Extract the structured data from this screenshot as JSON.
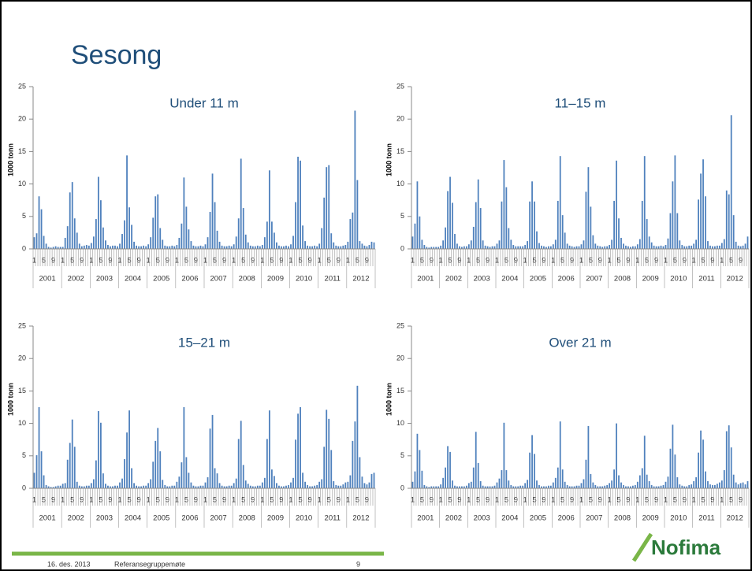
{
  "title": "Sesong",
  "chart_data": [
    {
      "type": "bar",
      "title": "Under 11 m",
      "y_label": "1000 tonn",
      "color": "#4f81bd",
      "ylim": [
        0,
        25
      ],
      "yticks": [
        0,
        5,
        10,
        15,
        20,
        25
      ],
      "grid": false,
      "groups": [
        "2001",
        "2002",
        "2003",
        "2004",
        "2005",
        "2006",
        "2007",
        "2008",
        "2009",
        "2010",
        "2011",
        "2012"
      ],
      "categories": [
        "1",
        null,
        null,
        null,
        "5",
        null,
        null,
        null,
        "9",
        null,
        null,
        null,
        "1",
        null,
        null,
        null,
        "5",
        null,
        null,
        null,
        "9",
        null,
        null,
        null,
        "1",
        null,
        null,
        null,
        "5",
        null,
        null,
        null,
        "9",
        null,
        null,
        null,
        "1",
        null,
        null,
        null,
        "5",
        null,
        null,
        null,
        "9",
        null,
        null,
        null,
        "1",
        null,
        null,
        null,
        "5",
        null,
        null,
        null,
        "9",
        null,
        null,
        null,
        "1",
        null,
        null,
        null,
        "5",
        null,
        null,
        null,
        "9",
        null,
        null,
        null,
        "1",
        null,
        null,
        null,
        "5",
        null,
        null,
        null,
        "9",
        null,
        null,
        null,
        "1",
        null,
        null,
        null,
        "5",
        null,
        null,
        null,
        "9",
        null,
        null,
        null,
        "1",
        null,
        null,
        null,
        "5",
        null,
        null,
        null,
        "9",
        null,
        null,
        null,
        "1",
        null,
        null,
        null,
        "5",
        null,
        null,
        null,
        "9",
        null,
        null,
        null,
        "1",
        null,
        null,
        null,
        "5",
        null,
        null,
        null,
        "9",
        null,
        null,
        null,
        "1",
        null,
        null,
        null,
        "5",
        null,
        null,
        null,
        "9",
        null,
        null,
        null
      ],
      "values": [
        1.8,
        2.4,
        8.1,
        6.1,
        2.0,
        0.8,
        0.3,
        0.2,
        0.3,
        0.4,
        0.3,
        0.3,
        0.3,
        1.7,
        3.5,
        8.7,
        10.3,
        4.7,
        2.5,
        0.8,
        0.4,
        0.5,
        0.6,
        0.5,
        0.9,
        1.9,
        4.6,
        11.1,
        7.5,
        3.3,
        1.3,
        0.6,
        0.4,
        0.5,
        0.5,
        0.4,
        0.8,
        2.3,
        4.4,
        14.4,
        6.4,
        3.7,
        1.1,
        0.5,
        0.4,
        0.4,
        0.5,
        0.4,
        0.7,
        1.8,
        4.8,
        8.1,
        8.4,
        3.2,
        1.4,
        0.5,
        0.4,
        0.4,
        0.5,
        0.4,
        0.6,
        1.7,
        3.9,
        11.0,
        6.5,
        3.0,
        1.2,
        0.5,
        0.4,
        0.4,
        0.5,
        0.4,
        0.7,
        1.8,
        5.7,
        11.6,
        7.2,
        2.8,
        1.1,
        0.5,
        0.4,
        0.4,
        0.5,
        0.4,
        0.7,
        1.9,
        4.7,
        13.9,
        6.3,
        2.2,
        1.0,
        0.5,
        0.4,
        0.4,
        0.5,
        0.4,
        0.6,
        1.8,
        4.2,
        12.1,
        4.2,
        2.5,
        1.0,
        0.5,
        0.4,
        0.4,
        0.5,
        0.4,
        0.7,
        2.0,
        7.2,
        14.2,
        13.6,
        3.6,
        1.2,
        0.5,
        0.4,
        0.4,
        0.5,
        0.4,
        0.8,
        3.2,
        7.9,
        12.6,
        12.9,
        2.4,
        1.0,
        0.5,
        0.4,
        0.4,
        0.5,
        0.6,
        1.1,
        4.6,
        5.6,
        21.3,
        10.6,
        1.2,
        0.8,
        0.5,
        0.4,
        0.6,
        1.1,
        1.0
      ]
    },
    {
      "type": "bar",
      "title": "11–15 m",
      "y_label": "1000 tonn",
      "color": "#4f81bd",
      "ylim": [
        0,
        25
      ],
      "yticks": [
        0,
        5,
        10,
        15,
        20,
        25
      ],
      "grid": false,
      "groups": [
        "2001",
        "2002",
        "2003",
        "2004",
        "2005",
        "2006",
        "2007",
        "2008",
        "2009",
        "2010",
        "2011",
        "2012"
      ],
      "categories": [
        "1",
        null,
        null,
        null,
        "5",
        null,
        null,
        null,
        "9",
        null,
        null,
        null,
        "1",
        null,
        null,
        null,
        "5",
        null,
        null,
        null,
        "9",
        null,
        null,
        null,
        "1",
        null,
        null,
        null,
        "5",
        null,
        null,
        null,
        "9",
        null,
        null,
        null,
        "1",
        null,
        null,
        null,
        "5",
        null,
        null,
        null,
        "9",
        null,
        null,
        null,
        "1",
        null,
        null,
        null,
        "5",
        null,
        null,
        null,
        "9",
        null,
        null,
        null,
        "1",
        null,
        null,
        null,
        "5",
        null,
        null,
        null,
        "9",
        null,
        null,
        null,
        "1",
        null,
        null,
        null,
        "5",
        null,
        null,
        null,
        "9",
        null,
        null,
        null,
        "1",
        null,
        null,
        null,
        "5",
        null,
        null,
        null,
        "9",
        null,
        null,
        null,
        "1",
        null,
        null,
        null,
        "5",
        null,
        null,
        null,
        "9",
        null,
        null,
        null,
        "1",
        null,
        null,
        null,
        "5",
        null,
        null,
        null,
        "9",
        null,
        null,
        null,
        "1",
        null,
        null,
        null,
        "5",
        null,
        null,
        null,
        "9",
        null,
        null,
        null,
        "1",
        null,
        null,
        null,
        "5",
        null,
        null,
        null,
        "9",
        null,
        null,
        null
      ],
      "values": [
        1.9,
        3.9,
        10.4,
        5.0,
        1.4,
        0.6,
        0.3,
        0.2,
        0.3,
        0.3,
        0.3,
        0.3,
        0.5,
        1.3,
        3.3,
        8.9,
        11.1,
        7.1,
        2.3,
        0.8,
        0.4,
        0.3,
        0.4,
        0.4,
        0.7,
        1.3,
        3.4,
        7.2,
        10.7,
        6.3,
        1.3,
        0.5,
        0.4,
        0.3,
        0.4,
        0.4,
        0.8,
        1.3,
        7.3,
        13.7,
        9.5,
        3.2,
        1.4,
        0.6,
        0.4,
        0.4,
        0.4,
        0.4,
        0.6,
        1.2,
        7.3,
        10.4,
        7.3,
        2.7,
        0.9,
        0.5,
        0.4,
        0.3,
        0.4,
        0.4,
        0.7,
        1.4,
        7.4,
        14.3,
        5.2,
        2.5,
        0.8,
        0.5,
        0.4,
        0.3,
        0.4,
        0.4,
        0.7,
        1.3,
        8.8,
        12.6,
        6.5,
        2.1,
        0.8,
        0.5,
        0.4,
        0.3,
        0.4,
        0.4,
        0.6,
        1.4,
        7.4,
        13.6,
        4.7,
        1.7,
        0.8,
        0.5,
        0.4,
        0.3,
        0.4,
        0.4,
        0.7,
        1.5,
        7.4,
        14.3,
        4.6,
        1.9,
        1.0,
        0.5,
        0.4,
        0.4,
        0.5,
        0.4,
        0.6,
        1.6,
        5.5,
        10.4,
        14.4,
        5.5,
        1.3,
        0.6,
        0.4,
        0.4,
        0.5,
        0.5,
        0.8,
        1.4,
        7.6,
        11.6,
        13.8,
        8.1,
        1.2,
        0.5,
        0.4,
        0.4,
        0.5,
        0.5,
        0.9,
        1.5,
        9.0,
        8.4,
        20.6,
        5.2,
        1.1,
        0.5,
        0.4,
        0.5,
        0.8,
        1.9
      ]
    },
    {
      "type": "bar",
      "title": "15–21 m",
      "y_label": "1000 tonn",
      "color": "#4f81bd",
      "ylim": [
        0,
        25
      ],
      "yticks": [
        0,
        5,
        10,
        15,
        20,
        25
      ],
      "grid": false,
      "groups": [
        "2001",
        "2002",
        "2003",
        "2004",
        "2005",
        "2006",
        "2007",
        "2008",
        "2009",
        "2010",
        "2011",
        "2012"
      ],
      "categories": [
        "1",
        null,
        null,
        null,
        "5",
        null,
        null,
        null,
        "9",
        null,
        null,
        null,
        "1",
        null,
        null,
        null,
        "5",
        null,
        null,
        null,
        "9",
        null,
        null,
        null,
        "1",
        null,
        null,
        null,
        "5",
        null,
        null,
        null,
        "9",
        null,
        null,
        null,
        "1",
        null,
        null,
        null,
        "5",
        null,
        null,
        null,
        "9",
        null,
        null,
        null,
        "1",
        null,
        null,
        null,
        "5",
        null,
        null,
        null,
        "9",
        null,
        null,
        null,
        "1",
        null,
        null,
        null,
        "5",
        null,
        null,
        null,
        "9",
        null,
        null,
        null,
        "1",
        null,
        null,
        null,
        "5",
        null,
        null,
        null,
        "9",
        null,
        null,
        null,
        "1",
        null,
        null,
        null,
        "5",
        null,
        null,
        null,
        "9",
        null,
        null,
        null,
        "1",
        null,
        null,
        null,
        "5",
        null,
        null,
        null,
        "9",
        null,
        null,
        null,
        "1",
        null,
        null,
        null,
        "5",
        null,
        null,
        null,
        "9",
        null,
        null,
        null,
        "1",
        null,
        null,
        null,
        "5",
        null,
        null,
        null,
        "9",
        null,
        null,
        null,
        "1",
        null,
        null,
        null,
        "5",
        null,
        null,
        null,
        "9",
        null,
        null,
        null
      ],
      "values": [
        2.4,
        5.1,
        12.5,
        5.7,
        2.0,
        0.5,
        0.3,
        0.2,
        0.2,
        0.3,
        0.4,
        0.4,
        0.7,
        0.8,
        4.4,
        7.0,
        10.6,
        6.4,
        1.0,
        0.4,
        0.3,
        0.3,
        0.4,
        0.4,
        0.8,
        1.4,
        4.3,
        11.9,
        10.1,
        2.3,
        0.7,
        0.4,
        0.3,
        0.3,
        0.4,
        0.4,
        0.9,
        1.5,
        4.5,
        8.6,
        12.0,
        3.1,
        0.8,
        0.4,
        0.3,
        0.3,
        0.4,
        0.4,
        0.8,
        1.4,
        4.1,
        7.3,
        9.3,
        5.7,
        1.3,
        0.5,
        0.3,
        0.3,
        0.4,
        0.4,
        1.0,
        1.8,
        4.0,
        12.5,
        4.8,
        2.4,
        0.9,
        0.4,
        0.3,
        0.3,
        0.4,
        0.4,
        0.9,
        1.7,
        9.2,
        11.3,
        3.1,
        2.3,
        0.8,
        0.4,
        0.3,
        0.3,
        0.4,
        0.4,
        0.8,
        1.5,
        7.6,
        10.4,
        3.6,
        1.2,
        0.7,
        0.4,
        0.3,
        0.3,
        0.4,
        0.4,
        0.9,
        1.6,
        7.6,
        12.0,
        2.9,
        1.9,
        0.8,
        0.4,
        0.3,
        0.3,
        0.4,
        0.5,
        0.9,
        1.6,
        7.5,
        11.5,
        12.5,
        2.4,
        1.0,
        0.5,
        0.3,
        0.3,
        0.4,
        0.5,
        1.0,
        1.4,
        6.4,
        12.1,
        10.7,
        5.9,
        1.1,
        0.5,
        0.4,
        0.4,
        0.6,
        0.9,
        1.0,
        2.0,
        7.3,
        10.3,
        15.8,
        4.8,
        1.8,
        0.8,
        0.6,
        0.9,
        2.2,
        2.4
      ]
    },
    {
      "type": "bar",
      "title": "Over 21 m",
      "y_label": "1000 tonn",
      "color": "#4f81bd",
      "ylim": [
        0,
        25
      ],
      "yticks": [
        0,
        5,
        10,
        15,
        20,
        25
      ],
      "grid": false,
      "groups": [
        "2001",
        "2002",
        "2003",
        "2004",
        "2005",
        "2006",
        "2007",
        "2008",
        "2009",
        "2010",
        "2011",
        "2012"
      ],
      "categories": [
        "1",
        null,
        null,
        null,
        "5",
        null,
        null,
        null,
        "9",
        null,
        null,
        null,
        "1",
        null,
        null,
        null,
        "5",
        null,
        null,
        null,
        "9",
        null,
        null,
        null,
        "1",
        null,
        null,
        null,
        "5",
        null,
        null,
        null,
        "9",
        null,
        null,
        null,
        "1",
        null,
        null,
        null,
        "5",
        null,
        null,
        null,
        "9",
        null,
        null,
        null,
        "1",
        null,
        null,
        null,
        "5",
        null,
        null,
        null,
        "9",
        null,
        null,
        null,
        "1",
        null,
        null,
        null,
        "5",
        null,
        null,
        null,
        "9",
        null,
        null,
        null,
        "1",
        null,
        null,
        null,
        "5",
        null,
        null,
        null,
        "9",
        null,
        null,
        null,
        "1",
        null,
        null,
        null,
        "5",
        null,
        null,
        null,
        "9",
        null,
        null,
        null,
        "1",
        null,
        null,
        null,
        "5",
        null,
        null,
        null,
        "9",
        null,
        null,
        null,
        "1",
        null,
        null,
        null,
        "5",
        null,
        null,
        null,
        "9",
        null,
        null,
        null,
        "1",
        null,
        null,
        null,
        "5",
        null,
        null,
        null,
        "9",
        null,
        null,
        null,
        "1",
        null,
        null,
        null,
        "5",
        null,
        null,
        null,
        "9",
        null,
        null,
        null
      ],
      "values": [
        1.0,
        2.6,
        8.4,
        5.9,
        2.7,
        0.5,
        0.3,
        0.2,
        0.3,
        0.3,
        0.3,
        0.3,
        0.6,
        1.6,
        3.2,
        6.5,
        5.6,
        1.2,
        0.4,
        0.3,
        0.3,
        0.3,
        0.3,
        0.4,
        0.8,
        1.0,
        3.2,
        8.7,
        3.9,
        1.1,
        0.4,
        0.3,
        0.3,
        0.3,
        0.3,
        0.4,
        0.9,
        1.5,
        2.8,
        10.1,
        2.8,
        1.2,
        0.5,
        0.3,
        0.3,
        0.3,
        0.4,
        0.4,
        0.8,
        1.3,
        5.5,
        8.2,
        5.3,
        1.2,
        0.5,
        0.3,
        0.3,
        0.3,
        0.4,
        0.4,
        0.9,
        1.6,
        3.2,
        10.3,
        2.9,
        1.0,
        0.5,
        0.3,
        0.3,
        0.3,
        0.4,
        0.4,
        0.8,
        1.4,
        4.4,
        9.6,
        2.2,
        0.9,
        0.5,
        0.3,
        0.3,
        0.3,
        0.4,
        0.5,
        0.8,
        1.2,
        2.9,
        10.0,
        2.0,
        0.9,
        0.5,
        0.3,
        0.3,
        0.3,
        0.4,
        0.5,
        1.0,
        2.0,
        3.1,
        8.1,
        2.1,
        1.1,
        0.5,
        0.3,
        0.3,
        0.3,
        0.4,
        0.5,
        1.0,
        1.8,
        6.1,
        9.8,
        5.2,
        1.7,
        0.6,
        0.4,
        0.3,
        0.3,
        0.5,
        0.6,
        1.1,
        1.7,
        5.5,
        8.9,
        7.5,
        2.6,
        1.1,
        0.6,
        0.5,
        0.5,
        0.7,
        0.9,
        1.2,
        2.8,
        8.8,
        9.7,
        6.3,
        2.1,
        0.9,
        0.6,
        0.8,
        0.9,
        0.6,
        1.1
      ]
    }
  ],
  "footer": {
    "date": "16. des. 2013",
    "event": "Referansegruppemøte",
    "page": "9"
  },
  "logo": "Nofima"
}
